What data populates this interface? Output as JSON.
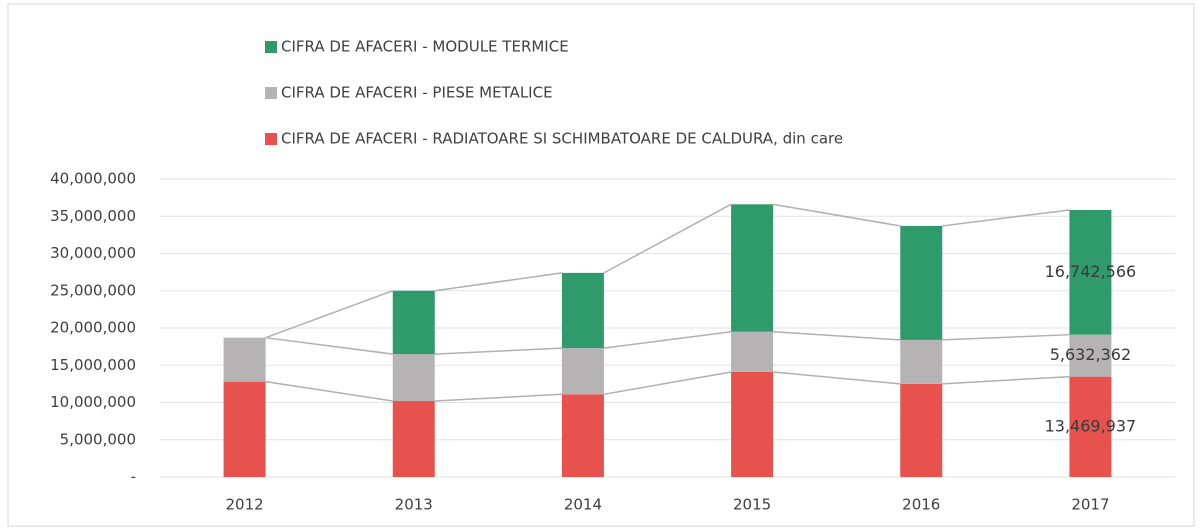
{
  "chart_data": {
    "type": "stacked_bar",
    "categories": [
      "2012",
      "2013",
      "2014",
      "2015",
      "2016",
      "2017"
    ],
    "series": [
      {
        "name": "CIFRA DE AFACERI - RADIATOARE SI SCHIMBATOARE DE CALDURA, din care",
        "color": "#e8524e",
        "values": [
          12800000,
          10200000,
          11100000,
          14100000,
          12500000,
          13469937
        ],
        "value_labels": [
          null,
          null,
          null,
          null,
          null,
          "13,469,937"
        ]
      },
      {
        "name": "CIFRA DE AFACERI - PIESE METALICE",
        "color": "#b6b3b4",
        "values": [
          5900000,
          6300000,
          6200000,
          5400000,
          5900000,
          5632362
        ],
        "value_labels": [
          null,
          null,
          null,
          null,
          null,
          "5,632,362"
        ]
      },
      {
        "name": "CIFRA DE AFACERI - MODULE TERMICE",
        "color": "#2f9a6b",
        "values": [
          0,
          8500000,
          10100000,
          17100000,
          15300000,
          16742566
        ],
        "value_labels": [
          null,
          null,
          null,
          null,
          null,
          "16,742,566"
        ]
      }
    ],
    "ylim": [
      0,
      40000000
    ],
    "yticks": [
      {
        "value": 0,
        "label": "-"
      },
      {
        "value": 5000000,
        "label": "5,000,000"
      },
      {
        "value": 10000000,
        "label": "10,000,000"
      },
      {
        "value": 15000000,
        "label": "15,000,000"
      },
      {
        "value": 20000000,
        "label": "20,000,000"
      },
      {
        "value": 25000000,
        "label": "25,000,000"
      },
      {
        "value": 30000000,
        "label": "30,000,000"
      },
      {
        "value": 35000000,
        "label": "35,000,000"
      },
      {
        "value": 40000000,
        "label": "40,000,000"
      }
    ],
    "grid": true
  }
}
